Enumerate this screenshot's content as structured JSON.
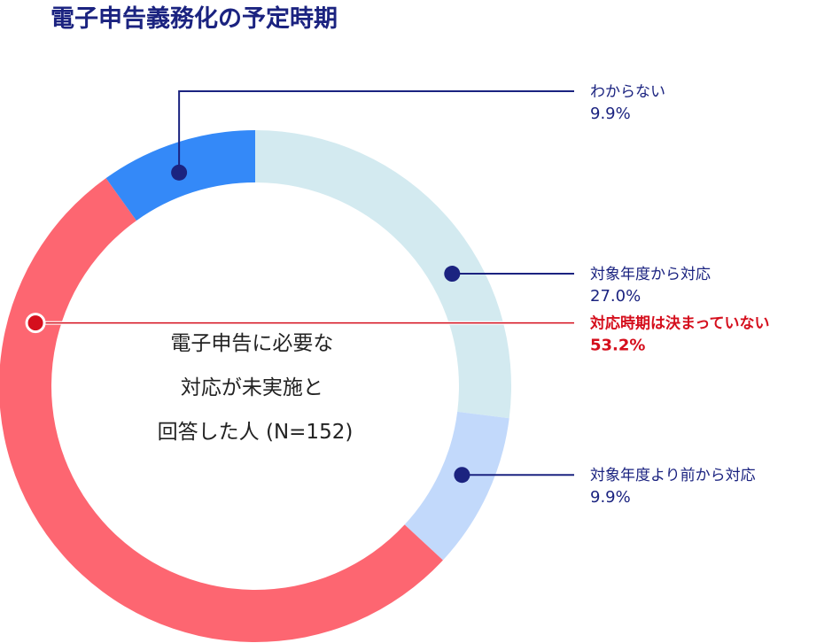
{
  "chart_data": {
    "type": "pie",
    "variant": "donut",
    "title": "電子申告義務化の予定時期",
    "center_label": [
      "電子申告に必要な",
      "対応が未実施と",
      "回答した人 (N=152)"
    ],
    "slices": [
      {
        "label": "対象年度から対応",
        "value": 27.0,
        "value_text": "27.0%",
        "color": "#d3eaf0",
        "dot_color": "#1b2380",
        "label_color": "#1b2380"
      },
      {
        "label": "対象年度より前から対応",
        "value": 9.9,
        "value_text": "9.9%",
        "color": "#c2d9fb",
        "dot_color": "#1b2380",
        "label_color": "#1b2380"
      },
      {
        "label": "対応時期は決まっていない",
        "value": 53.2,
        "value_text": "53.2%",
        "color": "#fd6671",
        "dot_color": "#d50f1d",
        "label_color": "#d50f1d",
        "emphasis": true
      },
      {
        "label": "わからない",
        "value": 9.9,
        "value_text": "9.9%",
        "color": "#3489f8",
        "dot_color": "#1b2380",
        "label_color": "#1b2380"
      }
    ],
    "start_angle": "12 o'clock",
    "direction": "clockwise"
  },
  "colors": {
    "title": "#1b2380",
    "leader_line": "#1b2380",
    "center_text": "#222222"
  }
}
